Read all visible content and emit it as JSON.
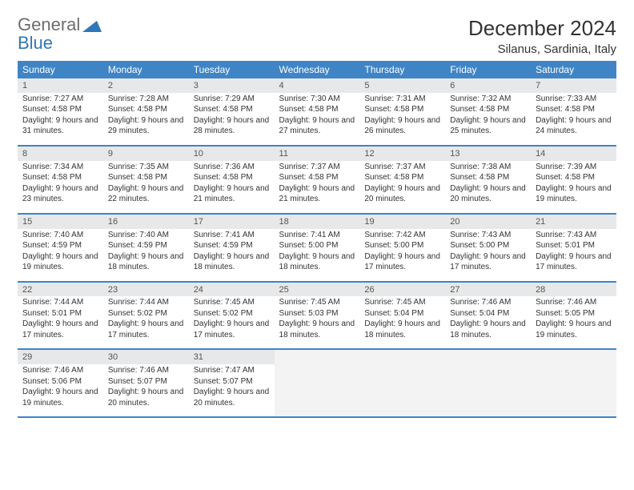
{
  "logo": {
    "word1": "General",
    "word2": "Blue",
    "color1": "#6d6d6d",
    "color2": "#2f77b8",
    "triangle_color": "#2f77b8"
  },
  "title": "December 2024",
  "location": "Silanus, Sardinia, Italy",
  "colors": {
    "header_bg": "#3f85c6",
    "header_text": "#ffffff",
    "daynum_bg": "#e7e8e9",
    "daynum_text": "#555555",
    "row_separator": "#3f85c6",
    "cell_text": "#333333",
    "empty_bg": "#f3f3f3"
  },
  "day_headers": [
    "Sunday",
    "Monday",
    "Tuesday",
    "Wednesday",
    "Thursday",
    "Friday",
    "Saturday"
  ],
  "weeks": [
    [
      {
        "n": "1",
        "sunrise": "7:27 AM",
        "sunset": "4:58 PM",
        "daylight": "9 hours and 31 minutes."
      },
      {
        "n": "2",
        "sunrise": "7:28 AM",
        "sunset": "4:58 PM",
        "daylight": "9 hours and 29 minutes."
      },
      {
        "n": "3",
        "sunrise": "7:29 AM",
        "sunset": "4:58 PM",
        "daylight": "9 hours and 28 minutes."
      },
      {
        "n": "4",
        "sunrise": "7:30 AM",
        "sunset": "4:58 PM",
        "daylight": "9 hours and 27 minutes."
      },
      {
        "n": "5",
        "sunrise": "7:31 AM",
        "sunset": "4:58 PM",
        "daylight": "9 hours and 26 minutes."
      },
      {
        "n": "6",
        "sunrise": "7:32 AM",
        "sunset": "4:58 PM",
        "daylight": "9 hours and 25 minutes."
      },
      {
        "n": "7",
        "sunrise": "7:33 AM",
        "sunset": "4:58 PM",
        "daylight": "9 hours and 24 minutes."
      }
    ],
    [
      {
        "n": "8",
        "sunrise": "7:34 AM",
        "sunset": "4:58 PM",
        "daylight": "9 hours and 23 minutes."
      },
      {
        "n": "9",
        "sunrise": "7:35 AM",
        "sunset": "4:58 PM",
        "daylight": "9 hours and 22 minutes."
      },
      {
        "n": "10",
        "sunrise": "7:36 AM",
        "sunset": "4:58 PM",
        "daylight": "9 hours and 21 minutes."
      },
      {
        "n": "11",
        "sunrise": "7:37 AM",
        "sunset": "4:58 PM",
        "daylight": "9 hours and 21 minutes."
      },
      {
        "n": "12",
        "sunrise": "7:37 AM",
        "sunset": "4:58 PM",
        "daylight": "9 hours and 20 minutes."
      },
      {
        "n": "13",
        "sunrise": "7:38 AM",
        "sunset": "4:58 PM",
        "daylight": "9 hours and 20 minutes."
      },
      {
        "n": "14",
        "sunrise": "7:39 AM",
        "sunset": "4:58 PM",
        "daylight": "9 hours and 19 minutes."
      }
    ],
    [
      {
        "n": "15",
        "sunrise": "7:40 AM",
        "sunset": "4:59 PM",
        "daylight": "9 hours and 19 minutes."
      },
      {
        "n": "16",
        "sunrise": "7:40 AM",
        "sunset": "4:59 PM",
        "daylight": "9 hours and 18 minutes."
      },
      {
        "n": "17",
        "sunrise": "7:41 AM",
        "sunset": "4:59 PM",
        "daylight": "9 hours and 18 minutes."
      },
      {
        "n": "18",
        "sunrise": "7:41 AM",
        "sunset": "5:00 PM",
        "daylight": "9 hours and 18 minutes."
      },
      {
        "n": "19",
        "sunrise": "7:42 AM",
        "sunset": "5:00 PM",
        "daylight": "9 hours and 17 minutes."
      },
      {
        "n": "20",
        "sunrise": "7:43 AM",
        "sunset": "5:00 PM",
        "daylight": "9 hours and 17 minutes."
      },
      {
        "n": "21",
        "sunrise": "7:43 AM",
        "sunset": "5:01 PM",
        "daylight": "9 hours and 17 minutes."
      }
    ],
    [
      {
        "n": "22",
        "sunrise": "7:44 AM",
        "sunset": "5:01 PM",
        "daylight": "9 hours and 17 minutes."
      },
      {
        "n": "23",
        "sunrise": "7:44 AM",
        "sunset": "5:02 PM",
        "daylight": "9 hours and 17 minutes."
      },
      {
        "n": "24",
        "sunrise": "7:45 AM",
        "sunset": "5:02 PM",
        "daylight": "9 hours and 17 minutes."
      },
      {
        "n": "25",
        "sunrise": "7:45 AM",
        "sunset": "5:03 PM",
        "daylight": "9 hours and 18 minutes."
      },
      {
        "n": "26",
        "sunrise": "7:45 AM",
        "sunset": "5:04 PM",
        "daylight": "9 hours and 18 minutes."
      },
      {
        "n": "27",
        "sunrise": "7:46 AM",
        "sunset": "5:04 PM",
        "daylight": "9 hours and 18 minutes."
      },
      {
        "n": "28",
        "sunrise": "7:46 AM",
        "sunset": "5:05 PM",
        "daylight": "9 hours and 19 minutes."
      }
    ],
    [
      {
        "n": "29",
        "sunrise": "7:46 AM",
        "sunset": "5:06 PM",
        "daylight": "9 hours and 19 minutes."
      },
      {
        "n": "30",
        "sunrise": "7:46 AM",
        "sunset": "5:07 PM",
        "daylight": "9 hours and 20 minutes."
      },
      {
        "n": "31",
        "sunrise": "7:47 AM",
        "sunset": "5:07 PM",
        "daylight": "9 hours and 20 minutes."
      },
      null,
      null,
      null,
      null
    ]
  ],
  "labels": {
    "sunrise": "Sunrise:",
    "sunset": "Sunset:",
    "daylight": "Daylight:"
  }
}
